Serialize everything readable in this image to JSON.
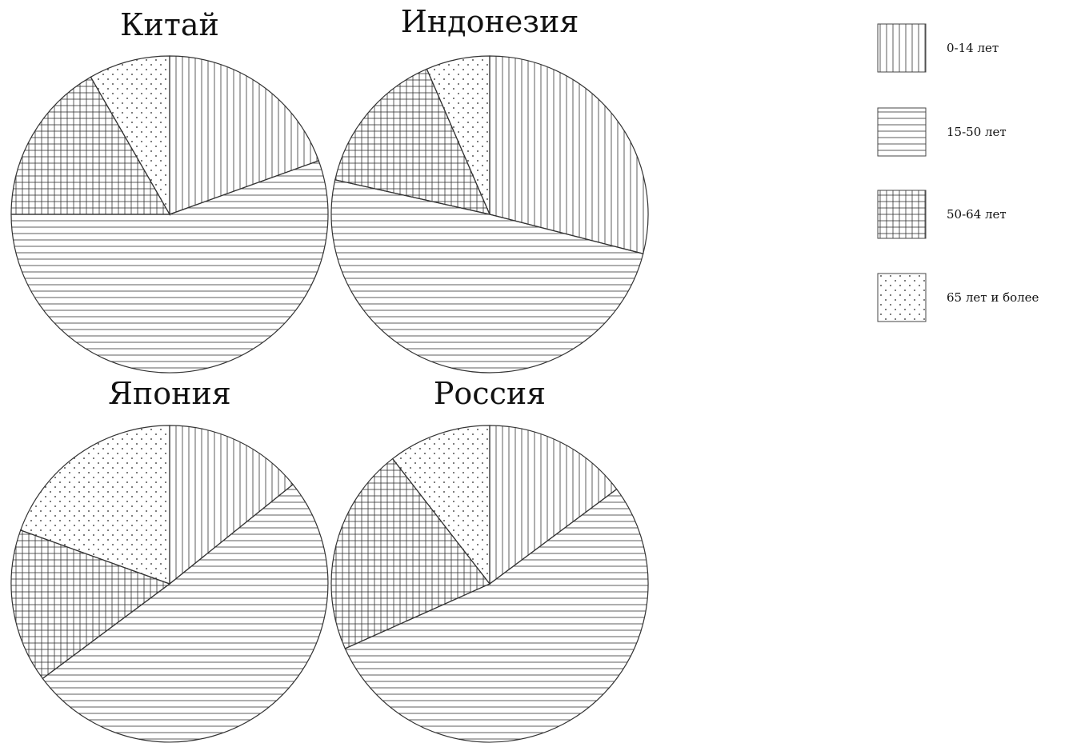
{
  "chart_data": {
    "type": "pie",
    "legend_position": "right",
    "categories": [
      "0-14 лет",
      "15-50 лет",
      "50-64 лет",
      "65 лет и более"
    ],
    "patterns": [
      "vertical-lines",
      "horizontal-lines",
      "grid",
      "dots"
    ],
    "charts": [
      {
        "title": "Китай",
        "values": [
          19.5,
          55.5,
          16.7,
          8.3
        ]
      },
      {
        "title": "Индонезия",
        "values": [
          29.0,
          49.5,
          15.0,
          6.5
        ]
      },
      {
        "title": "Япония",
        "values": [
          14.2,
          50.6,
          15.7,
          19.5
        ]
      },
      {
        "title": "Россия",
        "values": [
          14.8,
          53.5,
          21.2,
          10.5
        ]
      }
    ]
  }
}
